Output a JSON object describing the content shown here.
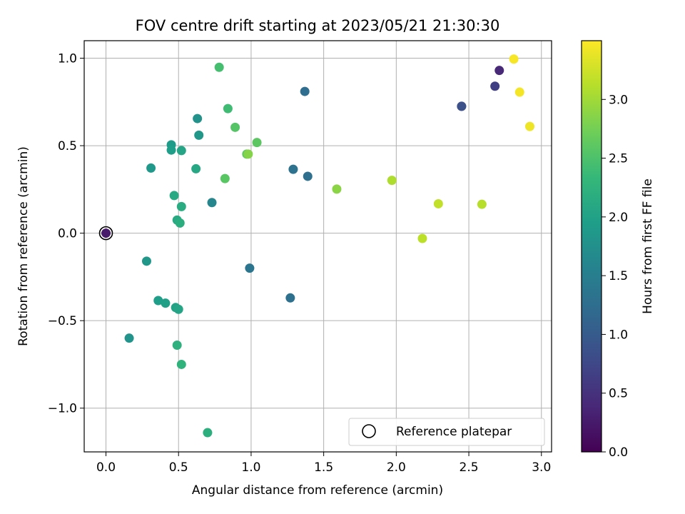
{
  "chart_data": {
    "type": "scatter",
    "title": "FOV centre drift starting at 2023/05/21 21:30:30",
    "xlabel": "Angular distance from reference (arcmin)",
    "ylabel": "Rotation from reference (arcmin)",
    "xlim": [
      -0.15,
      3.07
    ],
    "ylim": [
      -1.25,
      1.1
    ],
    "xticks": [
      0.0,
      0.5,
      1.0,
      1.5,
      2.0,
      2.5,
      3.0
    ],
    "xtick_labels": [
      "0.0",
      "0.5",
      "1.0",
      "1.5",
      "2.0",
      "2.5",
      "3.0"
    ],
    "yticks": [
      -1.0,
      -0.5,
      0.0,
      0.5,
      1.0
    ],
    "ytick_labels": [
      "−1.0",
      "−0.5",
      "0.0",
      "0.5",
      "1.0"
    ],
    "grid": true,
    "legend": {
      "placement": "lower-right",
      "entries": [
        "Reference platepar"
      ]
    },
    "colorbar": {
      "label": "Hours from first FF file",
      "colormap": "viridis",
      "range": [
        0.0,
        3.5
      ],
      "ticks": [
        0.0,
        0.5,
        1.0,
        1.5,
        2.0,
        2.5,
        3.0
      ],
      "tick_labels": [
        "0.0",
        "0.5",
        "1.0",
        "1.5",
        "2.0",
        "2.5",
        "3.0"
      ]
    },
    "reference_point": {
      "x": 0.0,
      "y": 0.0
    },
    "points": [
      {
        "x": 0.0,
        "y": 0.0,
        "h": 0.25
      },
      {
        "x": 2.71,
        "y": 0.93,
        "h": 0.4
      },
      {
        "x": 2.68,
        "y": 0.84,
        "h": 0.65
      },
      {
        "x": 2.45,
        "y": 0.725,
        "h": 0.78
      },
      {
        "x": 2.45,
        "y": 0.725,
        "h": 0.85
      },
      {
        "x": 1.37,
        "y": 0.81,
        "h": 1.25
      },
      {
        "x": 1.29,
        "y": 0.365,
        "h": 1.32
      },
      {
        "x": 1.39,
        "y": 0.325,
        "h": 1.28
      },
      {
        "x": 0.99,
        "y": -0.2,
        "h": 1.38
      },
      {
        "x": 1.27,
        "y": -0.37,
        "h": 1.3
      },
      {
        "x": 0.73,
        "y": 0.175,
        "h": 1.62
      },
      {
        "x": 0.63,
        "y": 0.655,
        "h": 1.78
      },
      {
        "x": 0.64,
        "y": 0.56,
        "h": 1.85
      },
      {
        "x": 0.16,
        "y": -0.6,
        "h": 1.8
      },
      {
        "x": 0.28,
        "y": -0.16,
        "h": 1.85
      },
      {
        "x": 0.31,
        "y": 0.372,
        "h": 1.88
      },
      {
        "x": 0.45,
        "y": 0.505,
        "h": 1.92
      },
      {
        "x": 0.45,
        "y": 0.475,
        "h": 1.95
      },
      {
        "x": 0.52,
        "y": 0.472,
        "h": 2.05
      },
      {
        "x": 0.62,
        "y": 0.368,
        "h": 2.08
      },
      {
        "x": 0.36,
        "y": -0.385,
        "h": 1.95
      },
      {
        "x": 0.41,
        "y": -0.4,
        "h": 1.98
      },
      {
        "x": 0.48,
        "y": -0.425,
        "h": 2.02
      },
      {
        "x": 0.5,
        "y": -0.435,
        "h": 2.05
      },
      {
        "x": 0.47,
        "y": 0.215,
        "h": 2.1
      },
      {
        "x": 0.52,
        "y": 0.152,
        "h": 2.15
      },
      {
        "x": 0.49,
        "y": 0.075,
        "h": 2.12
      },
      {
        "x": 0.51,
        "y": 0.058,
        "h": 2.18
      },
      {
        "x": 0.49,
        "y": -0.64,
        "h": 2.22
      },
      {
        "x": 0.52,
        "y": -0.75,
        "h": 2.25
      },
      {
        "x": 0.7,
        "y": -1.14,
        "h": 2.2
      },
      {
        "x": 0.84,
        "y": 0.712,
        "h": 2.4
      },
      {
        "x": 0.78,
        "y": 0.948,
        "h": 2.45
      },
      {
        "x": 0.89,
        "y": 0.605,
        "h": 2.55
      },
      {
        "x": 0.82,
        "y": 0.312,
        "h": 2.58
      },
      {
        "x": 0.97,
        "y": 0.452,
        "h": 2.62
      },
      {
        "x": 1.04,
        "y": 0.518,
        "h": 2.6
      },
      {
        "x": 0.98,
        "y": 0.452,
        "h": 2.85
      },
      {
        "x": 1.59,
        "y": 0.252,
        "h": 2.88
      },
      {
        "x": 1.97,
        "y": 0.302,
        "h": 3.08
      },
      {
        "x": 2.18,
        "y": -0.03,
        "h": 3.15
      },
      {
        "x": 2.29,
        "y": 0.168,
        "h": 3.18
      },
      {
        "x": 2.59,
        "y": 0.165,
        "h": 3.12
      },
      {
        "x": 2.81,
        "y": 0.995,
        "h": 3.47
      },
      {
        "x": 2.85,
        "y": 0.806,
        "h": 3.45
      },
      {
        "x": 2.92,
        "y": 0.61,
        "h": 3.42
      }
    ]
  }
}
